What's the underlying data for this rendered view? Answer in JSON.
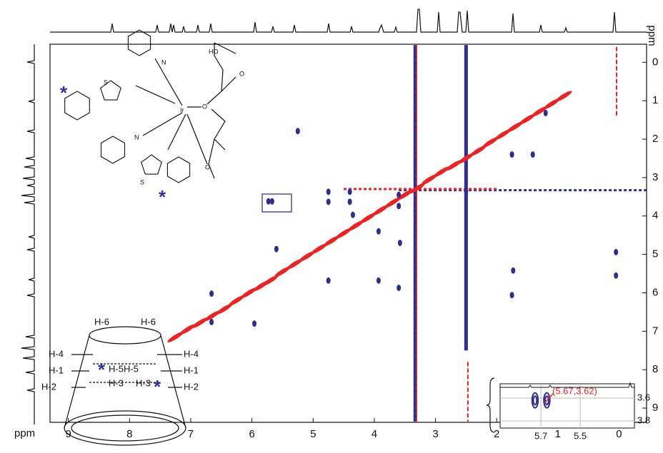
{
  "chart_data": {
    "type": "nmr2d",
    "xlabel": "ppm",
    "ylabel": "ppm",
    "xlim": [
      9.3,
      -0.45
    ],
    "ylim": [
      -0.47,
      9.37
    ],
    "xticks": [
      9,
      8,
      7,
      6,
      5,
      4,
      3,
      2,
      1,
      0
    ],
    "yticks": [
      0,
      1,
      2,
      3,
      4,
      5,
      6,
      7,
      8,
      9
    ],
    "series": [
      {
        "color": "#ee2222",
        "x": [
          7.25,
          7.05,
          6.85,
          6.65,
          6.45,
          6.25,
          6.05,
          5.85,
          5.7,
          5.5,
          5.3,
          5.1,
          4.9,
          4.7,
          4.5,
          4.3,
          4.1,
          3.9,
          3.7,
          3.5,
          3.3,
          3.1,
          2.9,
          2.7,
          2.5,
          2.3,
          2.1,
          1.9,
          1.7,
          1.5,
          1.3,
          1.1,
          0.9
        ],
        "values": [
          7.15,
          6.95,
          6.78,
          6.6,
          6.42,
          6.2,
          6.0,
          5.82,
          5.68,
          5.45,
          5.25,
          5.05,
          4.85,
          4.65,
          4.45,
          4.25,
          4.05,
          3.85,
          3.65,
          3.45,
          3.28,
          3.05,
          2.85,
          2.68,
          2.5,
          2.3,
          2.08,
          1.88,
          1.68,
          1.48,
          1.28,
          1.08,
          0.88
        ]
      },
      {
        "color": "#2e2e8e",
        "x": [
          5.25,
          5.73,
          5.67,
          4.75,
          4.75,
          4.4,
          4.4,
          4.35,
          3.93,
          3.6,
          3.6,
          3.58,
          5.6,
          4.75,
          3.93,
          3.6,
          6.66,
          6.66,
          5.96,
          1.73,
          1.75,
          0.05,
          0.05,
          1.2,
          1.75,
          1.41,
          2.5
        ],
        "values": [
          1.79,
          3.62,
          3.62,
          3.37,
          3.63,
          3.37,
          3.63,
          3.97,
          4.4,
          3.45,
          3.74,
          4.7,
          4.86,
          5.68,
          5.68,
          5.87,
          6.02,
          6.76,
          6.8,
          5.42,
          6.06,
          4.94,
          5.55,
          1.32,
          2.4,
          2.4,
          3.35
        ]
      }
    ],
    "bands": [
      {
        "orientation": "vertical",
        "at": 3.33,
        "range": [
          -0.45,
          9.35
        ],
        "color": "#2e2e8e"
      },
      {
        "orientation": "vertical",
        "at": 2.5,
        "range": [
          -0.45,
          7.5
        ],
        "color": "#2e2e8e"
      },
      {
        "orientation": "horizontal",
        "at": 3.33,
        "range": [
          3.6,
          -0.45
        ],
        "color": "#2e2e8e"
      },
      {
        "orientation": "vertical",
        "at": 3.31,
        "range": [
          -0.45,
          9.35
        ],
        "color": "#ee2222"
      },
      {
        "orientation": "vertical",
        "at": 2.47,
        "range": [
          7.8,
          9.35
        ],
        "color": "#ee2222"
      },
      {
        "orientation": "horizontal",
        "at": 3.3,
        "range": [
          4.5,
          2.0
        ],
        "color": "#ee2222"
      },
      {
        "orientation": "vertical",
        "at": 0.04,
        "range": [
          -0.4,
          1.4
        ],
        "color": "#ee2222"
      }
    ],
    "annotations": [
      "HO",
      "O",
      "N",
      "Ir",
      "O",
      "O",
      "N",
      "S",
      "S",
      "*",
      "*",
      "H-6",
      "H-6",
      "H-4",
      "H-4",
      "H-5H-5",
      "H-1",
      "H-1",
      "H-3",
      "H-3",
      "H-2",
      "H-2",
      "*",
      "*"
    ],
    "inset": {
      "xlim": [
        5.908,
        5.224
      ],
      "ylim": [
        3.475,
        3.8625
      ],
      "xticks": [
        5.7,
        5.5
      ],
      "yticks": [
        3.6,
        3.8
      ],
      "x": [
        5.73,
        5.67
      ],
      "values": [
        3.62,
        3.62
      ],
      "color": "#2e2e8e",
      "label": "(5.67,3.62)",
      "label_color": "#ee2222"
    }
  }
}
